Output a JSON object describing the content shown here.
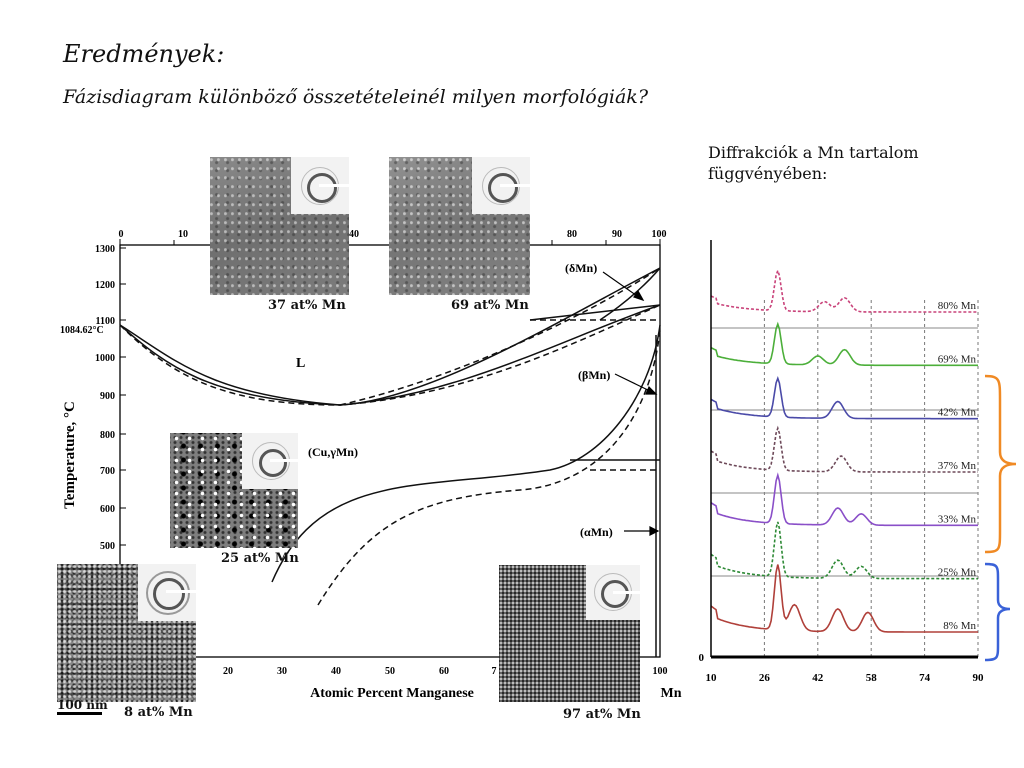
{
  "slide": {
    "title": "Eredmények:",
    "subtitle": "Fázisdiagram különböző összetételeinél milyen morfológiák?",
    "diffraction_heading": "Diffrakciók a Mn tartalom függvényében:"
  },
  "micrographs": [
    {
      "label": "37 at% Mn"
    },
    {
      "label": "69 at% Mn"
    },
    {
      "label": "25 at% Mn"
    },
    {
      "label": "8 at% Mn"
    },
    {
      "label": "97 at% Mn"
    }
  ],
  "scale_bar": "100 nm",
  "phase_diagram": {
    "ylabel": "Temperature, °C",
    "xlabel": "Atomic Percent Manganese",
    "x_element": "Mn",
    "top_ticks": [
      "0",
      "10",
      "40",
      "80",
      "90",
      "100"
    ],
    "bottom_ticks": [
      "20",
      "30",
      "40",
      "50",
      "60",
      "7",
      "100"
    ],
    "y_ticks": [
      "1300",
      "1200",
      "1100",
      "1000",
      "900",
      "800",
      "700",
      "600",
      "500"
    ],
    "melting_point_label": "1084.62°C",
    "regions": {
      "liquid": "L",
      "delta": "(δMn)",
      "beta": "(βMn)",
      "gamma": "(Cu,γMn)",
      "alpha": "(αMn)"
    }
  },
  "chart_data": {
    "type": "line",
    "title": "",
    "xlabel": "",
    "ylabel": "",
    "x_ticks": [
      "10",
      "26",
      "42",
      "58",
      "74",
      "90"
    ],
    "y_ticks": [
      "0"
    ],
    "xlim": [
      10,
      90
    ],
    "series": [
      {
        "name": "80% Mn",
        "color": "#c9437a",
        "style": "dashed",
        "peaks": [
          [
            30,
            1.0
          ],
          [
            44,
            0.25
          ],
          [
            50,
            0.35
          ]
        ]
      },
      {
        "name": "69% Mn",
        "color": "#4caf3a",
        "style": "solid",
        "peaks": [
          [
            30,
            0.9
          ],
          [
            42,
            0.2
          ],
          [
            50,
            0.35
          ]
        ]
      },
      {
        "name": "42% Mn",
        "color": "#4a4aa8",
        "style": "solid",
        "peaks": [
          [
            30,
            0.8
          ],
          [
            48,
            0.35
          ]
        ]
      },
      {
        "name": "37% Mn",
        "color": "#6e4a5a",
        "style": "dashed",
        "peaks": [
          [
            30,
            0.8
          ],
          [
            49,
            0.3
          ]
        ]
      },
      {
        "name": "33% Mn",
        "color": "#8a4fc8",
        "style": "solid",
        "peaks": [
          [
            30,
            0.85
          ],
          [
            48,
            0.3
          ],
          [
            55,
            0.2
          ]
        ]
      },
      {
        "name": "25% Mn",
        "color": "#2e8a36",
        "style": "dashed",
        "peaks": [
          [
            30,
            0.9
          ],
          [
            48,
            0.3
          ],
          [
            55,
            0.2
          ]
        ]
      },
      {
        "name": "8% Mn",
        "color": "#b0403a",
        "style": "solid",
        "peaks": [
          [
            30,
            1.0
          ],
          [
            35,
            0.4
          ],
          [
            48,
            0.35
          ],
          [
            57,
            0.3
          ]
        ]
      }
    ]
  }
}
